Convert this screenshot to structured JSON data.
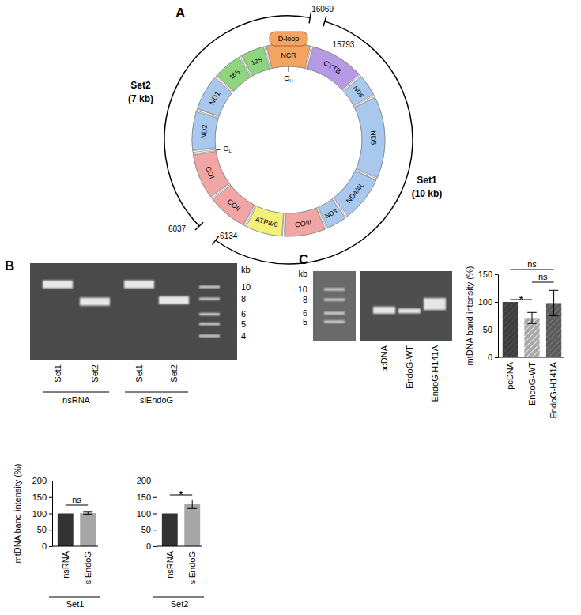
{
  "panel_labels": [
    "A",
    "B",
    "C"
  ],
  "diagram": {
    "genes": [
      {
        "name": "NCR",
        "color": "#f4a460"
      },
      {
        "name": "CYTB",
        "color": "#b79ae6"
      },
      {
        "name": "ND6",
        "color": "#a9c8ee"
      },
      {
        "name": "ND5",
        "color": "#a9c8ee"
      },
      {
        "name": "ND4/4L",
        "color": "#a9c8ee"
      },
      {
        "name": "ND3",
        "color": "#a9c8ee"
      },
      {
        "name": "COIII",
        "color": "#f2a5a5"
      },
      {
        "name": "ATP8/6",
        "color": "#f5f07a"
      },
      {
        "name": "COII",
        "color": "#f2a5a5"
      },
      {
        "name": "COI",
        "color": "#f2a5a5"
      },
      {
        "name": "ND2",
        "color": "#a9c8ee"
      },
      {
        "name": "ND1",
        "color": "#a9c8ee"
      },
      {
        "name": "16S",
        "color": "#8fd47e"
      },
      {
        "name": "12S",
        "color": "#8fd47e"
      }
    ],
    "d_loop": {
      "label": "D-loop",
      "color": "#f4a460"
    },
    "origins": [
      {
        "letter": "O",
        "subscript": "H"
      },
      {
        "letter": "O",
        "subscript": "L"
      }
    ],
    "sets": [
      {
        "name": "Set1",
        "size": "(10 kb)",
        "ends": [
          15793,
          6134
        ]
      },
      {
        "name": "Set2",
        "size": "(7 kb)",
        "ends": [
          6037,
          16069
        ]
      }
    ]
  },
  "gels": [
    {
      "unit": "kb",
      "ladder": [
        10,
        8,
        6,
        5,
        4
      ],
      "groups": [
        {
          "label": "nsRNA",
          "lanes": [
            {
              "label": "Set1",
              "band_kb": 10.5
            },
            {
              "label": "Set2",
              "band_kb": 7.6
            }
          ]
        },
        {
          "label": "siEndoG",
          "lanes": [
            {
              "label": "Set1",
              "band_kb": 10.5
            },
            {
              "label": "Set2",
              "band_kb": 7.8
            }
          ]
        }
      ]
    },
    {
      "unit": "kb",
      "ladder": [
        10,
        8,
        6,
        5
      ],
      "lanes": [
        {
          "label": "pcDNA",
          "band_kb": 6.4
        },
        {
          "label": "EndoG-WT",
          "band_kb": 6.3
        },
        {
          "label": "EndoG-H141A",
          "band_kb": 7.3
        }
      ]
    }
  ],
  "chart_data": [
    {
      "type": "bar",
      "categories": [
        "nsRNA",
        "siEndoG"
      ],
      "values": [
        100,
        101
      ],
      "errors": [
        null,
        3
      ],
      "colors": [
        "#333333",
        "#a6a6a6"
      ],
      "ylabel": "mtDNA band intensity (%)",
      "xlabel": "Set1",
      "ylim": [
        0,
        200
      ],
      "yticks": [
        0,
        50,
        100,
        150,
        200
      ],
      "annotations": [
        {
          "text": "ns",
          "between": [
            "nsRNA",
            "siEndoG"
          ]
        }
      ]
    },
    {
      "type": "bar",
      "categories": [
        "nsRNA",
        "siEndoG"
      ],
      "values": [
        100,
        128
      ],
      "errors": [
        null,
        13
      ],
      "colors": [
        "#333333",
        "#a6a6a6"
      ],
      "xlabel": "Set2",
      "ylim": [
        0,
        200
      ],
      "yticks": [
        0,
        50,
        100,
        150,
        200
      ],
      "annotations": [
        {
          "text": "*",
          "between": [
            "nsRNA",
            "siEndoG"
          ]
        }
      ]
    },
    {
      "type": "bar",
      "categories": [
        "pcDNA",
        "EndoG-WT",
        "EndoG-H141A"
      ],
      "values": [
        100,
        71,
        98
      ],
      "errors": [
        null,
        10,
        23
      ],
      "colors": [
        "#3d3d3d",
        "#a8a8a8",
        "#5a5a5a"
      ],
      "ylabel": "mtDNA band intensity (%)",
      "ylim": [
        0,
        150
      ],
      "yticks": [
        0,
        50,
        100,
        150
      ],
      "annotations": [
        {
          "text": "ns",
          "between": [
            "pcDNA",
            "EndoG-H141A"
          ]
        },
        {
          "text": "ns",
          "between": [
            "EndoG-WT",
            "EndoG-H141A"
          ]
        },
        {
          "text": "*",
          "between": [
            "pcDNA",
            "EndoG-WT"
          ]
        }
      ]
    }
  ]
}
